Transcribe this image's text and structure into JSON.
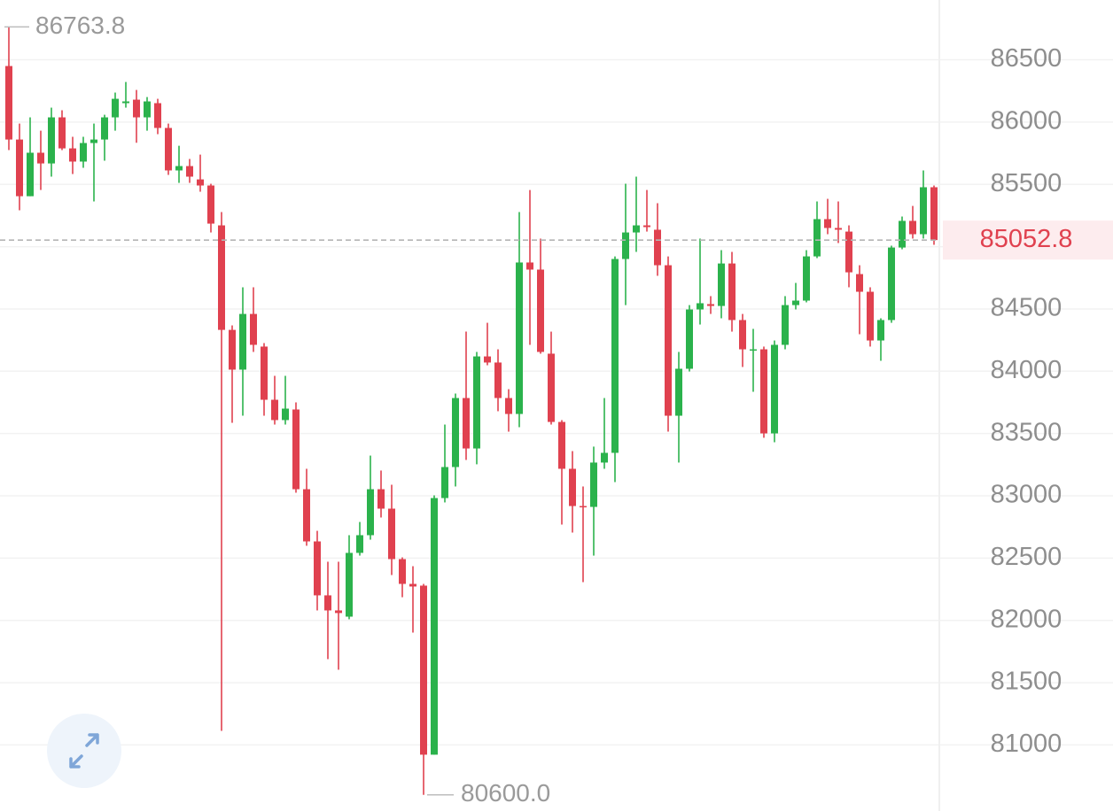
{
  "chart_data": {
    "type": "candlestick",
    "up_color": "#2bb24c",
    "down_color": "#e0414f",
    "ylim": [
      80470,
      86980
    ],
    "yticks": [
      81000,
      81500,
      82000,
      82500,
      83000,
      83500,
      84000,
      84500,
      85000,
      85500,
      86000,
      86500
    ],
    "grid": true,
    "max_marker": 86763.8,
    "min_marker": {
      "value": 80600,
      "label": "80600.0"
    },
    "last_price": 85052.8,
    "open": [
      86450,
      85860,
      85405,
      85754,
      85668,
      86038,
      85789,
      85683,
      85832,
      85860,
      86038,
      86152,
      86180,
      86038,
      86152,
      85953,
      85612,
      85647,
      85540,
      85491,
      85171,
      84332,
      84013,
      84460,
      84198,
      83771,
      83608,
      83693,
      83053,
      82634,
      82201,
      82080,
      82030,
      82542,
      82684,
      83053,
      82897,
      82492,
      82293,
      82279,
      80922,
      82982,
      83231,
      83785,
      83380,
      84119,
      84070,
      83785,
      83657,
      84873,
      84816,
      84141,
      83593,
      83217,
      82918,
      82911,
      83267,
      83345,
      84901,
      85114,
      85171,
      85136,
      84851,
      83643,
      84020,
      84496,
      84539,
      84524,
      84865,
      84411,
      84169,
      84176,
      83501,
      84212,
      84531,
      84567,
      84922,
      85221,
      85150,
      85121,
      84780,
      84638,
      84247,
      84411,
      84993,
      85207,
      85100,
      85477
    ],
    "high": [
      86763.8,
      85988,
      86038,
      85931,
      86116,
      86095,
      85882,
      85882,
      85988,
      86059,
      86237,
      86322,
      86258,
      86201,
      86187,
      85988,
      85810,
      85704,
      85739,
      85505,
      85278,
      84368,
      84674,
      84674,
      84226,
      83963,
      83963,
      83750,
      83217,
      82719,
      82471,
      82471,
      82684,
      82790,
      83323,
      83203,
      83089,
      82506,
      82435,
      82293,
      83004,
      83572,
      83821,
      84318,
      84155,
      84389,
      84176,
      83856,
      85278,
      85455,
      85065,
      84318,
      83608,
      83359,
      83075,
      83395,
      83785,
      84922,
      85505,
      85562,
      85455,
      85349,
      84922,
      84155,
      84531,
      85065,
      84603,
      84972,
      84958,
      84460,
      84340,
      84198,
      84247,
      84603,
      84709,
      84972,
      85363,
      85384,
      85363,
      85171,
      84851,
      84674,
      84425,
      85008,
      85242,
      85327,
      85612,
      85491
    ],
    "low": [
      85775,
      85292,
      85405,
      85455,
      85562,
      85775,
      85583,
      85633,
      85363,
      85690,
      85931,
      86116,
      85834,
      85931,
      85903,
      85576,
      85512,
      85512,
      85441,
      85114,
      81113,
      83586,
      83643,
      84155,
      83643,
      83572,
      83572,
      83025,
      82599,
      82080,
      81689,
      81604,
      82009,
      82520,
      82648,
      82826,
      82364,
      82186,
      81902,
      80600,
      80922,
      82947,
      83075,
      83288,
      83253,
      84048,
      83679,
      83515,
      83551,
      84212,
      84141,
      83572,
      82769,
      82705,
      82307,
      82520,
      83217,
      83110,
      84531,
      84958,
      85121,
      84766,
      83515,
      83267,
      83998,
      84375,
      84460,
      84425,
      84318,
      84034,
      83835,
      83466,
      83430,
      84176,
      84496,
      84553,
      84908,
      85100,
      85029,
      84674,
      84297,
      84198,
      84084,
      84389,
      84979,
      85065,
      85065,
      85015
    ],
    "close": [
      85860,
      85405,
      85754,
      85668,
      86038,
      85789,
      85683,
      85832,
      85860,
      86038,
      86187,
      86166,
      86038,
      86166,
      85953,
      85612,
      85647,
      85562,
      85491,
      85185,
      84332,
      84013,
      84460,
      84212,
      83771,
      83608,
      83700,
      83053,
      82634,
      82201,
      82080,
      82059,
      82542,
      82684,
      83053,
      82897,
      82492,
      82293,
      82272,
      80922,
      82982,
      83231,
      83785,
      83380,
      84119,
      84070,
      83785,
      83657,
      84873,
      84816,
      84155,
      83593,
      83217,
      82918,
      82911,
      83267,
      83345,
      84901,
      85114,
      85171,
      85157,
      84851,
      83643,
      84020,
      84496,
      84546,
      84524,
      84865,
      84411,
      84176,
      84176,
      83501,
      84212,
      84531,
      84567,
      84922,
      85221,
      85150,
      85136,
      84794,
      84638,
      84247,
      84411,
      84993,
      85207,
      85100,
      85477,
      85052.8
    ]
  }
}
